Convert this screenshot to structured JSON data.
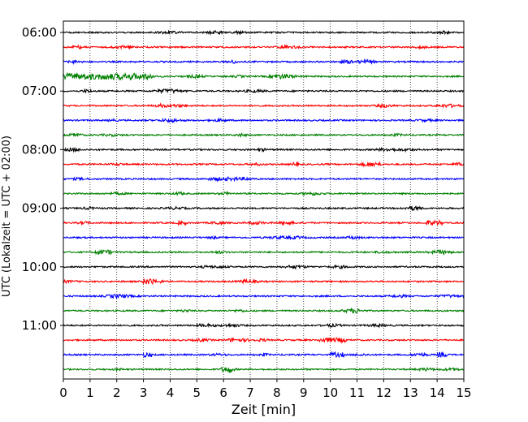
{
  "chart_data": {
    "type": "line",
    "subtype": "helicorder",
    "xlabel": "Zeit  [min]",
    "ylabel": "UTC (Lokalzeit = UTC + 02:00)",
    "xlim": [
      0,
      15
    ],
    "x_ticks": [
      0,
      1,
      2,
      3,
      4,
      5,
      6,
      7,
      8,
      9,
      10,
      11,
      12,
      13,
      14,
      15
    ],
    "y_tick_labels": [
      "06:00",
      "07:00",
      "08:00",
      "09:00",
      "10:00",
      "11:00"
    ],
    "y_ticks_every_n_traces": 4,
    "trace_count": 24,
    "trace_interval_minutes": 15,
    "trace_colors": [
      "#000000",
      "#ff0000",
      "#0000ff",
      "#008000"
    ],
    "grid": "vertical dotted at every minute",
    "highlights": [
      {
        "trace": 3,
        "start_min": 0,
        "end_min": 3.4,
        "level": 3
      },
      {
        "trace": 17,
        "start_min": 3,
        "end_min": 3.4,
        "level": 3
      },
      {
        "trace": 15,
        "start_min": 1.2,
        "end_min": 1.8,
        "level": 2
      },
      {
        "trace": 21,
        "start_min": 9.6,
        "end_min": 10.6,
        "level": 2
      },
      {
        "trace": 22,
        "start_min": 3.0,
        "end_min": 3.3,
        "level": 2
      },
      {
        "trace": 22,
        "start_min": 10.0,
        "end_min": 10.5,
        "level": 2
      },
      {
        "trace": 22,
        "start_min": 14.0,
        "end_min": 14.4,
        "level": 2
      },
      {
        "trace": 23,
        "start_min": 5.9,
        "end_min": 6.3,
        "level": 2
      },
      {
        "trace": 13,
        "start_min": 13.6,
        "end_min": 14.2,
        "level": 2
      },
      {
        "trace": 13,
        "start_min": 4.3,
        "end_min": 4.6,
        "level": 1.5
      },
      {
        "trace": 9,
        "start_min": 8.6,
        "end_min": 8.8,
        "level": 2
      },
      {
        "trace": 9,
        "start_min": 11.5,
        "end_min": 11.9,
        "level": 1.5
      }
    ]
  }
}
